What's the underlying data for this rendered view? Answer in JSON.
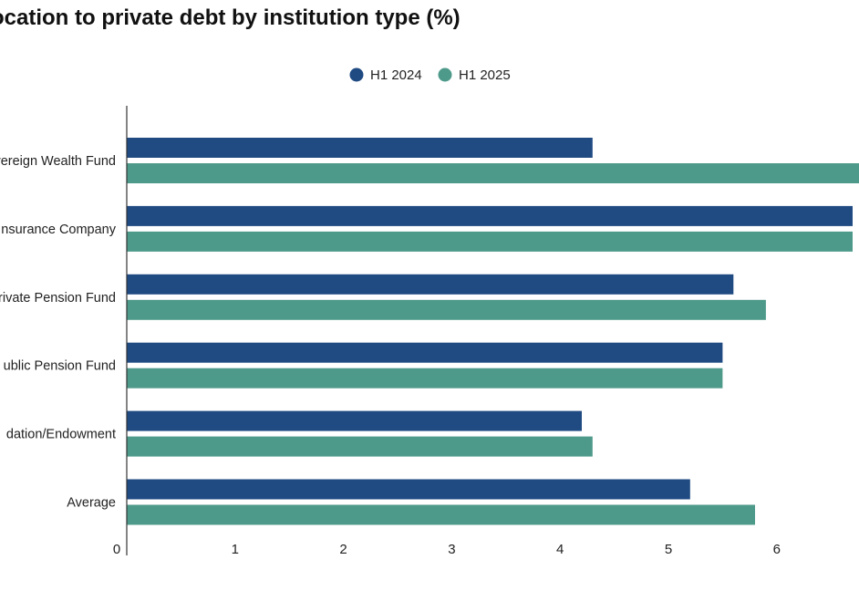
{
  "chart_data": {
    "type": "bar",
    "orientation": "horizontal",
    "title": "ocation to private debt by institution type (%)",
    "categories": [
      "vereign Wealth Fund",
      "Insurance Company",
      "rivate Pension Fund",
      "ublic Pension Fund",
      "dation/Endowment",
      "Average"
    ],
    "series": [
      {
        "name": "H1 2024",
        "color": "#1f4a82",
        "values": [
          4.3,
          6.7,
          5.6,
          5.5,
          4.2,
          5.2
        ]
      },
      {
        "name": "H1 2025",
        "color": "#4e9a8a",
        "values": [
          6.9,
          6.7,
          5.9,
          5.5,
          4.3,
          5.8
        ]
      }
    ],
    "xticks": [
      0,
      1,
      2,
      3,
      4,
      5,
      6
    ],
    "xlim": [
      0,
      6.7
    ],
    "grid": false,
    "legend": "top-center"
  }
}
